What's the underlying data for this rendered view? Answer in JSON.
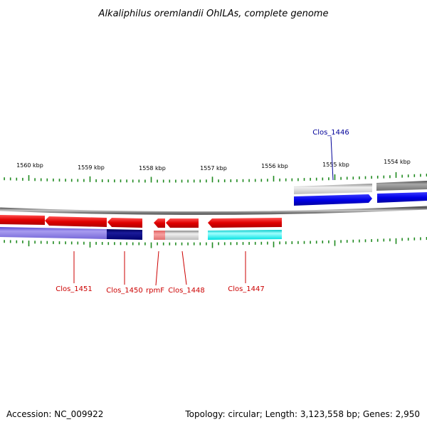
{
  "title": "Alkaliphilus oremlandii OhILAs, complete genome",
  "ruler": {
    "tick_color": "#1f8a1f",
    "labels": [
      "1560 kbp",
      "1559 kbp",
      "1558 kbp",
      "1557 kbp",
      "1556 kbp",
      "1555 kbp",
      "1554 kbp"
    ]
  },
  "genes": {
    "reverse": [
      {
        "label": "Clos_1451",
        "color": "#ee0000"
      },
      {
        "label": "Clos_1450",
        "color": "#ee0000"
      },
      {
        "label": "rpmF",
        "color": "#ee0000"
      },
      {
        "label": "Clos_1448",
        "color": "#ee0000"
      },
      {
        "label": "Clos_1447",
        "color": "#ee0000"
      }
    ],
    "forward": [
      {
        "label": "Clos_1446",
        "color": "#0000ee"
      }
    ]
  },
  "footer": {
    "accession": "Accession: NC_009922",
    "summary": "Topology: circular; Length: 3,123,558 bp; Genes: 2,950"
  }
}
